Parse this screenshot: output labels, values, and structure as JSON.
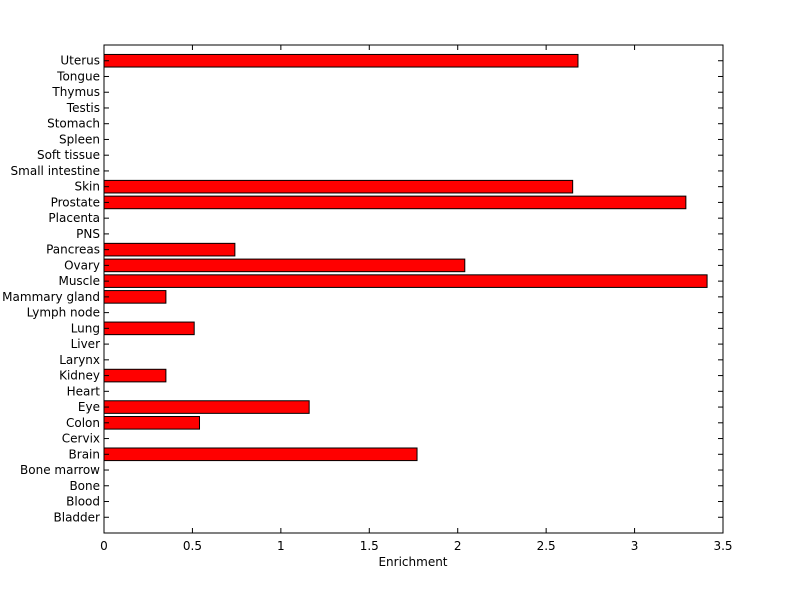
{
  "chart_data": {
    "type": "bar",
    "orientation": "horizontal",
    "title": "",
    "xlabel": "Enrichment",
    "ylabel": "",
    "xlim": [
      0,
      3.5
    ],
    "xticks": [
      0,
      0.5,
      1,
      1.5,
      2,
      2.5,
      3,
      3.5
    ],
    "xtick_labels": [
      "0",
      "0.5",
      "1",
      "1.5",
      "2",
      "2.5",
      "3",
      "3.5"
    ],
    "grid": false,
    "bar_color": "#ff0000",
    "categories": [
      "Bladder",
      "Blood",
      "Bone",
      "Bone marrow",
      "Brain",
      "Cervix",
      "Colon",
      "Eye",
      "Heart",
      "Kidney",
      "Larynx",
      "Liver",
      "Lung",
      "Lymph node",
      "Mammary gland",
      "Muscle",
      "Ovary",
      "Pancreas",
      "PNS",
      "Placenta",
      "Prostate",
      "Skin",
      "Small intestine",
      "Soft tissue",
      "Spleen",
      "Stomach",
      "Testis",
      "Thymus",
      "Tongue",
      "Uterus"
    ],
    "values": [
      0,
      0,
      0,
      0,
      1.77,
      0,
      0.54,
      1.16,
      0,
      0.35,
      0,
      0,
      0.51,
      0,
      0.35,
      3.41,
      2.04,
      0.74,
      0,
      0,
      3.29,
      2.65,
      0,
      0,
      0,
      0,
      0,
      0,
      0,
      2.68
    ]
  }
}
